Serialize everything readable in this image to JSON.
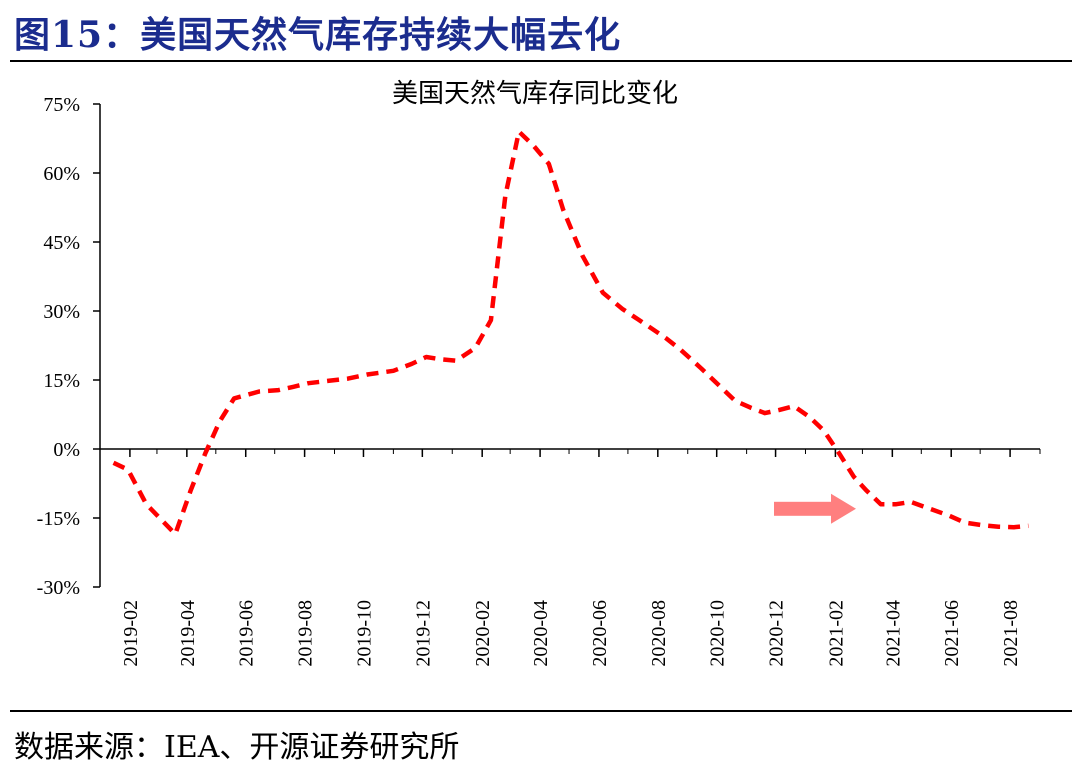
{
  "figure": {
    "title": "图15：美国天然气库存持续大幅去化",
    "source": "数据来源：IEA、开源证券研究所"
  },
  "chart_data": {
    "type": "line",
    "title": "美国天然气库存同比变化",
    "xlabel": "",
    "ylabel": "",
    "ylim": [
      -30,
      75
    ],
    "y_ticks": [
      "75%",
      "60%",
      "45%",
      "30%",
      "15%",
      "0%",
      "-15%",
      "-30%"
    ],
    "y_tick_values": [
      75,
      60,
      45,
      30,
      15,
      0,
      -15,
      -30
    ],
    "x_tick_labels": [
      "2019-02",
      "2019-04",
      "2019-06",
      "2019-08",
      "2019-10",
      "2019-12",
      "2020-02",
      "2020-04",
      "2020-06",
      "2020-08",
      "2020-10",
      "2020-12",
      "2021-02",
      "2021-04",
      "2021-06",
      "2021-08"
    ],
    "line_color": "#ff0000",
    "line_style": "dashed",
    "annotation": {
      "type": "arrow",
      "direction": "right",
      "color": "#ff7f7f"
    },
    "series": [
      {
        "x": [
          "2019-01-15",
          "2019-01-30",
          "2019-02-18",
          "2019-03-20",
          "2019-04-05",
          "2019-04-20",
          "2019-05-05",
          "2019-05-20",
          "2019-06-15",
          "2019-07-05",
          "2019-07-20",
          "2019-08-05",
          "2019-08-25",
          "2019-09-15",
          "2019-10-05",
          "2019-11-01",
          "2019-11-20",
          "2019-12-05",
          "2019-12-20",
          "2020-01-05",
          "2020-01-25",
          "2020-02-10",
          "2020-02-25",
          "2020-03-10",
          "2020-03-25",
          "2020-04-10",
          "2020-04-25",
          "2020-05-15",
          "2020-06-05",
          "2020-06-25",
          "2020-07-20",
          "2020-08-10",
          "2020-08-25",
          "2020-09-15",
          "2020-10-05",
          "2020-10-20",
          "2020-11-05",
          "2020-11-20",
          "2020-12-05",
          "2020-12-20",
          "2021-01-05",
          "2021-01-20",
          "2021-02-05",
          "2021-02-20",
          "2021-03-05",
          "2021-03-20",
          "2021-04-05",
          "2021-04-20",
          "2021-05-10",
          "2021-05-30",
          "2021-06-15",
          "2021-07-05",
          "2021-07-20",
          "2021-08-05",
          "2021-08-20"
        ],
        "values": [
          -3,
          -4.5,
          -12,
          -18.5,
          -9,
          -1,
          6,
          11,
          12.5,
          12.8,
          13.5,
          14.3,
          14.8,
          15.3,
          16.2,
          17,
          18.5,
          20,
          19.5,
          19.2,
          22,
          28,
          55,
          69,
          66,
          62,
          52,
          42,
          34,
          30.5,
          27,
          24,
          21.5,
          17.5,
          13.5,
          10.5,
          9,
          7.8,
          8.5,
          9.3,
          7,
          4,
          -1,
          -6,
          -9,
          -12,
          -12,
          -11.5,
          -13,
          -14.5,
          -16,
          -16.6,
          -16.9,
          -17,
          -16.7
        ]
      }
    ]
  }
}
